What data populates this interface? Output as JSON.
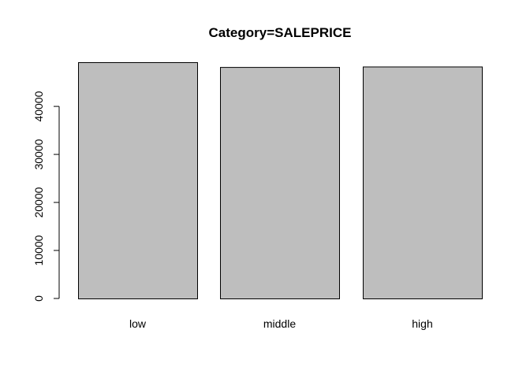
{
  "chart_data": {
    "type": "bar",
    "title": "Category=SALEPRICE",
    "xlabel": "",
    "ylabel": "",
    "categories": [
      "low",
      "middle",
      "high"
    ],
    "values": [
      49200,
      48200,
      48300
    ],
    "ylim": [
      0,
      49200
    ],
    "yticks": [
      0,
      10000,
      20000,
      30000,
      40000
    ],
    "ytick_labels": [
      "0",
      "10000",
      "20000",
      "30000",
      "40000"
    ],
    "bar_color": "#bebebe",
    "border_color": "#000000",
    "grid": false,
    "legend": "none"
  }
}
